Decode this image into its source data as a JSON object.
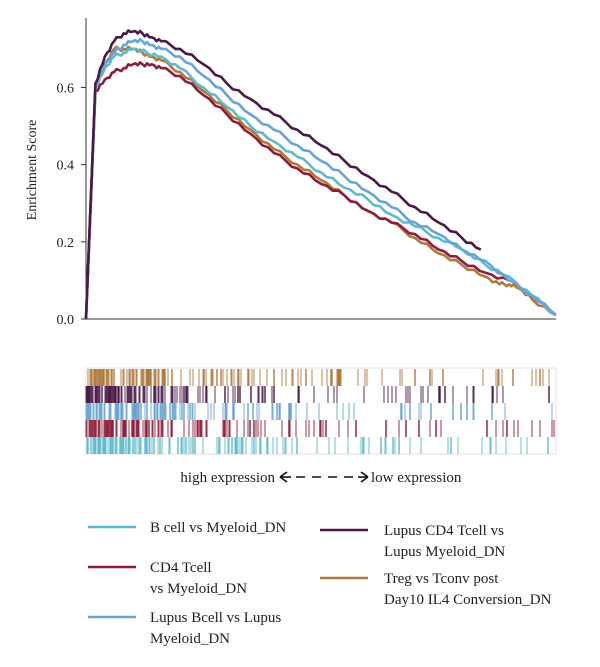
{
  "chart_data": {
    "type": "line",
    "title": "",
    "xlabel": "",
    "ylabel": "Enrichment Score",
    "ylim": [
      0,
      0.78
    ],
    "xlim": [
      0,
      1
    ],
    "yticks": [
      {
        "value": 0.0,
        "label": "0.0"
      },
      {
        "value": 0.2,
        "label": "0.2"
      },
      {
        "value": 0.4,
        "label": "0.4"
      },
      {
        "value": 0.6,
        "label": "0.6"
      }
    ],
    "grid": false,
    "legend_position": "bottom",
    "series": [
      {
        "name": "B cell vs Myeloid_DN",
        "color": "#5dbccc",
        "x": [
          0.0,
          0.02,
          0.04,
          0.06,
          0.08,
          0.1,
          0.13,
          0.16,
          0.2,
          0.25,
          0.3,
          0.35,
          0.4,
          0.45,
          0.5,
          0.55,
          0.6,
          0.65,
          0.7,
          0.75,
          0.8,
          0.85,
          0.9,
          0.95,
          1.0
        ],
        "values": [
          0.0,
          0.6,
          0.65,
          0.68,
          0.69,
          0.7,
          0.69,
          0.68,
          0.65,
          0.6,
          0.55,
          0.5,
          0.46,
          0.42,
          0.38,
          0.34,
          0.31,
          0.27,
          0.24,
          0.21,
          0.18,
          0.14,
          0.11,
          0.06,
          0.01
        ]
      },
      {
        "name": "CD4 Tcell vs Myeloid_DN",
        "color": "#8c1d3c",
        "x": [
          0.0,
          0.02,
          0.04,
          0.06,
          0.08,
          0.1,
          0.12,
          0.14,
          0.16,
          0.2,
          0.25,
          0.3,
          0.35,
          0.4,
          0.45,
          0.5,
          0.55,
          0.6,
          0.65,
          0.7,
          0.75,
          0.8,
          0.85,
          0.9,
          0.95,
          1.0
        ],
        "values": [
          0.0,
          0.59,
          0.62,
          0.64,
          0.65,
          0.66,
          0.66,
          0.66,
          0.65,
          0.63,
          0.58,
          0.53,
          0.48,
          0.43,
          0.39,
          0.35,
          0.32,
          0.28,
          0.25,
          0.22,
          0.18,
          0.15,
          0.12,
          0.1,
          0.06,
          0.01
        ]
      },
      {
        "name": "Lupus Bcell vs Lupus Myeloid_DN",
        "color": "#6aa3d5",
        "x": [
          0.0,
          0.02,
          0.04,
          0.06,
          0.08,
          0.1,
          0.12,
          0.14,
          0.16,
          0.2,
          0.25,
          0.3,
          0.35,
          0.4,
          0.45,
          0.5,
          0.55,
          0.6,
          0.65,
          0.7,
          0.75,
          0.8,
          0.85,
          0.9,
          0.95,
          1.0
        ],
        "values": [
          0.0,
          0.6,
          0.66,
          0.69,
          0.71,
          0.72,
          0.72,
          0.71,
          0.7,
          0.68,
          0.63,
          0.58,
          0.53,
          0.49,
          0.45,
          0.41,
          0.37,
          0.33,
          0.29,
          0.25,
          0.22,
          0.18,
          0.15,
          0.1,
          0.06,
          0.01
        ]
      },
      {
        "name": "Lupus CD4 Tcell vs Lupus Myeloid_DN",
        "color": "#4a1a47",
        "x": [
          0.0,
          0.02,
          0.04,
          0.06,
          0.08,
          0.1,
          0.12,
          0.14,
          0.16,
          0.2,
          0.25,
          0.3,
          0.35,
          0.4,
          0.45,
          0.5,
          0.55,
          0.6,
          0.65,
          0.7,
          0.75,
          0.8,
          0.84
        ],
        "values": [
          0.0,
          0.61,
          0.68,
          0.72,
          0.74,
          0.745,
          0.74,
          0.73,
          0.72,
          0.7,
          0.66,
          0.61,
          0.57,
          0.53,
          0.49,
          0.45,
          0.41,
          0.37,
          0.33,
          0.29,
          0.25,
          0.21,
          0.18
        ]
      },
      {
        "name": "Treg vs Tconv post Day10 IL4 Conversion_DN",
        "color": "#b0793d",
        "x": [
          0.0,
          0.02,
          0.04,
          0.06,
          0.08,
          0.1,
          0.12,
          0.14,
          0.16,
          0.2,
          0.25,
          0.3,
          0.35,
          0.4,
          0.45,
          0.5,
          0.55,
          0.6,
          0.65,
          0.7,
          0.75,
          0.8,
          0.85,
          0.88,
          0.9,
          0.92,
          0.95,
          1.0
        ],
        "values": [
          0.0,
          0.6,
          0.66,
          0.7,
          0.7,
          0.7,
          0.69,
          0.68,
          0.67,
          0.64,
          0.59,
          0.54,
          0.49,
          0.44,
          0.4,
          0.36,
          0.32,
          0.28,
          0.25,
          0.21,
          0.17,
          0.14,
          0.11,
          0.09,
          0.09,
          0.08,
          0.05,
          0.01
        ]
      }
    ],
    "barcode_rows": [
      {
        "series": "Treg vs Tconv post Day10 IL4 Conversion_DN",
        "color": "#b0793d"
      },
      {
        "series": "Lupus CD4 Tcell vs Lupus Myeloid_DN",
        "color": "#4a1a47"
      },
      {
        "series": "Lupus Bcell vs Lupus Myeloid_DN",
        "color": "#6aa3d5"
      },
      {
        "series": "CD4 Tcell vs Myeloid_DN",
        "color": "#8c1d3c"
      },
      {
        "series": "B cell vs Myeloid_DN",
        "color": "#5dbccc"
      }
    ],
    "expression_axis": {
      "left_label": "high expression",
      "right_label": "low expression"
    }
  }
}
